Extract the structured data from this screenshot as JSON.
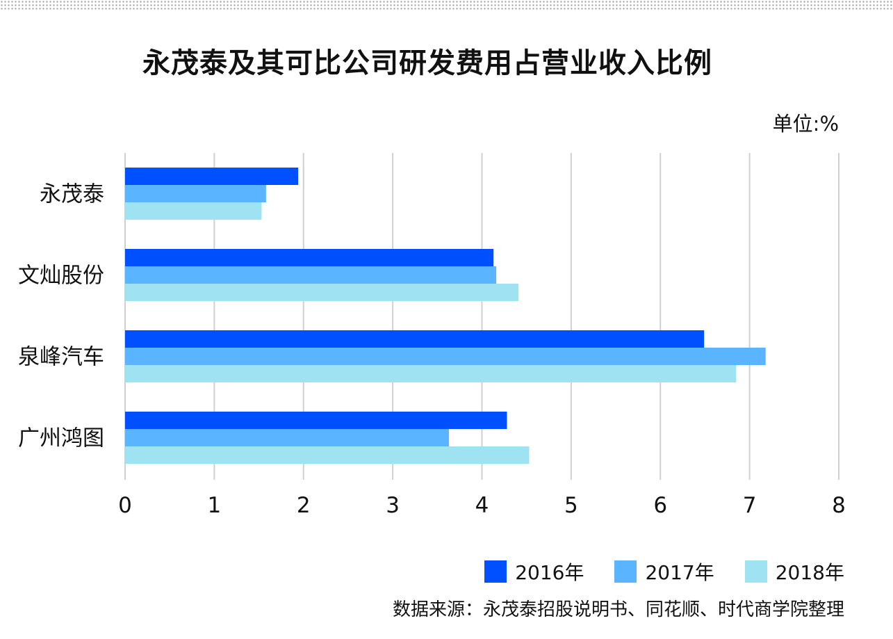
{
  "title": "永茂泰及其可比公司研发费用占营业收入比例",
  "unit_label": "单位:%",
  "source": "数据来源：永茂泰招股说明书、同花顺、时代商学院整理",
  "colors": {
    "2016年": "#0050ff",
    "2017年": "#5ab4ff",
    "2018年": "#9fe2f2",
    "grid": "#d0d0d0"
  },
  "chart_data": {
    "type": "bar",
    "orientation": "horizontal",
    "categories": [
      "永茂泰",
      "文灿股份",
      "泉峰汽车",
      "广州鸿图"
    ],
    "series": [
      {
        "name": "2016年",
        "values": [
          1.94,
          4.13,
          6.49,
          4.28
        ]
      },
      {
        "name": "2017年",
        "values": [
          1.58,
          4.16,
          7.18,
          3.63
        ]
      },
      {
        "name": "2018年",
        "values": [
          1.53,
          4.41,
          6.85,
          4.53
        ]
      }
    ],
    "xlim": [
      0,
      8
    ],
    "xticks": [
      "0",
      "1",
      "2",
      "3",
      "4",
      "5",
      "6",
      "7",
      "8"
    ],
    "grid": true,
    "legend_position": "bottom-right"
  }
}
